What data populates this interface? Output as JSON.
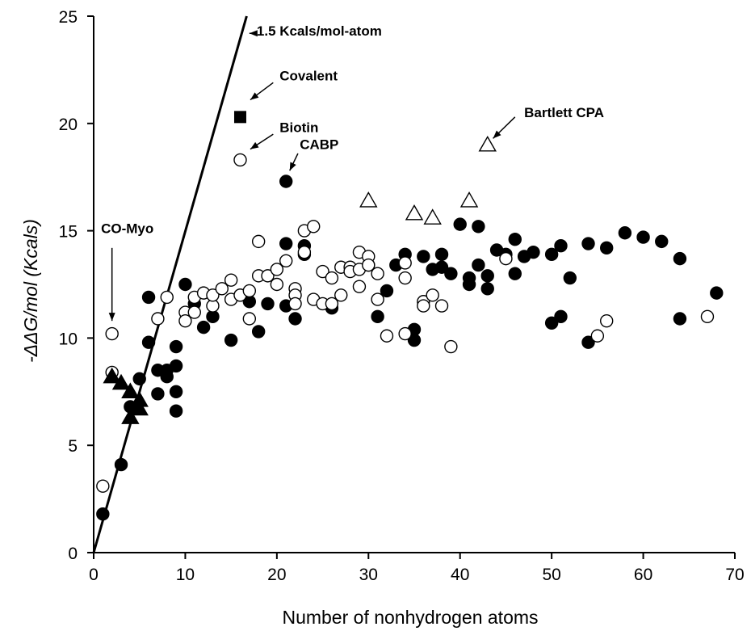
{
  "chart_data": {
    "type": "scatter",
    "title": "",
    "xlabel": "Number of nonhydrogen atoms",
    "ylabel": "-ΔΔG/mol (Kcals)",
    "xlim": [
      0,
      70
    ],
    "ylim": [
      0,
      25
    ],
    "x_ticks": [
      "0",
      "10",
      "20",
      "30",
      "40",
      "50",
      "60",
      "70"
    ],
    "y_ticks": [
      "0",
      "5",
      "10",
      "15",
      "20",
      "25"
    ],
    "grid": false,
    "legend": "none",
    "reference_line": {
      "label": "1.5 Kcals/mol-atom",
      "slope": 1.5,
      "x": [
        0,
        16.7
      ],
      "y": [
        0,
        25
      ]
    },
    "series": [
      {
        "marker": "filled-circle",
        "color": "#000000",
        "points": [
          [
            1,
            1.8
          ],
          [
            3,
            4.1
          ],
          [
            4,
            6.8
          ],
          [
            5,
            8.1
          ],
          [
            6,
            9.8
          ],
          [
            6,
            11.9
          ],
          [
            7,
            8.5
          ],
          [
            7,
            7.4
          ],
          [
            8,
            8.5
          ],
          [
            8,
            8.2
          ],
          [
            9,
            8.7
          ],
          [
            9,
            9.6
          ],
          [
            9,
            7.5
          ],
          [
            9,
            6.6
          ],
          [
            10,
            12.5
          ],
          [
            11,
            11.6
          ],
          [
            12,
            10.5
          ],
          [
            13,
            11.0
          ],
          [
            15,
            9.9
          ],
          [
            16,
            12.0
          ],
          [
            17,
            11.7
          ],
          [
            18,
            10.3
          ],
          [
            19,
            11.6
          ],
          [
            21,
            14.4
          ],
          [
            21,
            11.5
          ],
          [
            21,
            17.3
          ],
          [
            22,
            10.9
          ],
          [
            23,
            14.3
          ],
          [
            23,
            13.9
          ],
          [
            26,
            11.4
          ],
          [
            30,
            13.4
          ],
          [
            31,
            11.0
          ],
          [
            32,
            12.2
          ],
          [
            33,
            13.4
          ],
          [
            34,
            13.9
          ],
          [
            35,
            10.4
          ],
          [
            35,
            9.9
          ],
          [
            36,
            13.8
          ],
          [
            37,
            13.2
          ],
          [
            38,
            13.9
          ],
          [
            38,
            13.3
          ],
          [
            39,
            13.0
          ],
          [
            40,
            15.3
          ],
          [
            41,
            12.8
          ],
          [
            41,
            12.5
          ],
          [
            42,
            15.2
          ],
          [
            42,
            13.4
          ],
          [
            43,
            12.9
          ],
          [
            43,
            12.3
          ],
          [
            44,
            14.1
          ],
          [
            45,
            13.9
          ],
          [
            46,
            14.6
          ],
          [
            46,
            13.0
          ],
          [
            47,
            13.8
          ],
          [
            48,
            14.0
          ],
          [
            50,
            13.9
          ],
          [
            50,
            10.7
          ],
          [
            51,
            14.3
          ],
          [
            51,
            11.0
          ],
          [
            52,
            12.8
          ],
          [
            54,
            14.4
          ],
          [
            54,
            9.8
          ],
          [
            56,
            14.2
          ],
          [
            58,
            14.9
          ],
          [
            60,
            14.7
          ],
          [
            62,
            14.5
          ],
          [
            64,
            13.7
          ],
          [
            64,
            10.9
          ],
          [
            68,
            12.1
          ]
        ]
      },
      {
        "marker": "open-circle",
        "color": "#000000",
        "points": [
          [
            1,
            3.1
          ],
          [
            2,
            10.2
          ],
          [
            2,
            8.4
          ],
          [
            7,
            10.9
          ],
          [
            8,
            11.9
          ],
          [
            10,
            11.2
          ],
          [
            10,
            10.8
          ],
          [
            11,
            11.9
          ],
          [
            11,
            11.2
          ],
          [
            12,
            12.1
          ],
          [
            13,
            11.5
          ],
          [
            13,
            12.0
          ],
          [
            14,
            12.3
          ],
          [
            15,
            12.7
          ],
          [
            15,
            11.8
          ],
          [
            16,
            18.3
          ],
          [
            16,
            12.0
          ],
          [
            17,
            12.2
          ],
          [
            17,
            10.9
          ],
          [
            18,
            14.5
          ],
          [
            18,
            12.9
          ],
          [
            19,
            12.9
          ],
          [
            20,
            13.2
          ],
          [
            20,
            12.5
          ],
          [
            21,
            13.6
          ],
          [
            22,
            12.3
          ],
          [
            22,
            12.0
          ],
          [
            22,
            11.6
          ],
          [
            23,
            15.0
          ],
          [
            23,
            14.0
          ],
          [
            24,
            15.2
          ],
          [
            24,
            11.8
          ],
          [
            25,
            13.1
          ],
          [
            25,
            11.6
          ],
          [
            26,
            12.8
          ],
          [
            26,
            11.6
          ],
          [
            27,
            13.3
          ],
          [
            27,
            12.0
          ],
          [
            28,
            13.3
          ],
          [
            28,
            13.1
          ],
          [
            29,
            14.0
          ],
          [
            29,
            13.2
          ],
          [
            29,
            12.4
          ],
          [
            30,
            13.8
          ],
          [
            30,
            13.4
          ],
          [
            31,
            11.8
          ],
          [
            31,
            13.0
          ],
          [
            32,
            10.1
          ],
          [
            34,
            13.5
          ],
          [
            34,
            12.8
          ],
          [
            34,
            10.2
          ],
          [
            36,
            11.7
          ],
          [
            36,
            11.5
          ],
          [
            37,
            12.0
          ],
          [
            38,
            11.5
          ],
          [
            39,
            9.6
          ],
          [
            45,
            13.7
          ],
          [
            55,
            10.1
          ],
          [
            56,
            10.8
          ],
          [
            67,
            11.0
          ]
        ]
      },
      {
        "marker": "filled-triangle",
        "color": "#000000",
        "points": [
          [
            2,
            8.2
          ],
          [
            3,
            7.9
          ],
          [
            4,
            7.5
          ],
          [
            4,
            6.3
          ],
          [
            5,
            6.7
          ],
          [
            5,
            7.1
          ]
        ]
      },
      {
        "marker": "open-triangle",
        "color": "#000000",
        "points": [
          [
            30,
            16.4
          ],
          [
            35,
            15.8
          ],
          [
            37,
            15.6
          ],
          [
            41,
            16.4
          ],
          [
            43,
            19.0
          ]
        ]
      },
      {
        "marker": "filled-square",
        "color": "#000000",
        "points": [
          [
            16,
            20.3
          ]
        ]
      }
    ],
    "annotations": [
      {
        "text": "1.5 Kcals/mol-atom",
        "tx": 17.8,
        "ty": 24.1,
        "ax1": 17.7,
        "ay1": 24.2,
        "ax2": 17.0,
        "ay2": 24.2
      },
      {
        "text": "Covalent",
        "tx": 20.3,
        "ty": 22.0,
        "ax1": 19.6,
        "ay1": 21.9,
        "ax2": 17.1,
        "ay2": 21.1
      },
      {
        "text": "Biotin",
        "tx": 20.3,
        "ty": 19.6,
        "ax1": 19.6,
        "ay1": 19.5,
        "ax2": 17.1,
        "ay2": 18.8
      },
      {
        "text": "CABP",
        "tx": 22.5,
        "ty": 18.8,
        "ax1": 22.3,
        "ay1": 18.6,
        "ax2": 21.4,
        "ay2": 17.8
      },
      {
        "text": "Bartlett CPA",
        "tx": 47.0,
        "ty": 20.3,
        "ax1": 46.0,
        "ay1": 20.3,
        "ax2": 43.6,
        "ay2": 19.3
      },
      {
        "text": "CO-Myo",
        "tx": 0.8,
        "ty": 14.9,
        "ax1": 2.0,
        "ay1": 14.2,
        "ax2": 2.0,
        "ay2": 10.8
      }
    ]
  }
}
